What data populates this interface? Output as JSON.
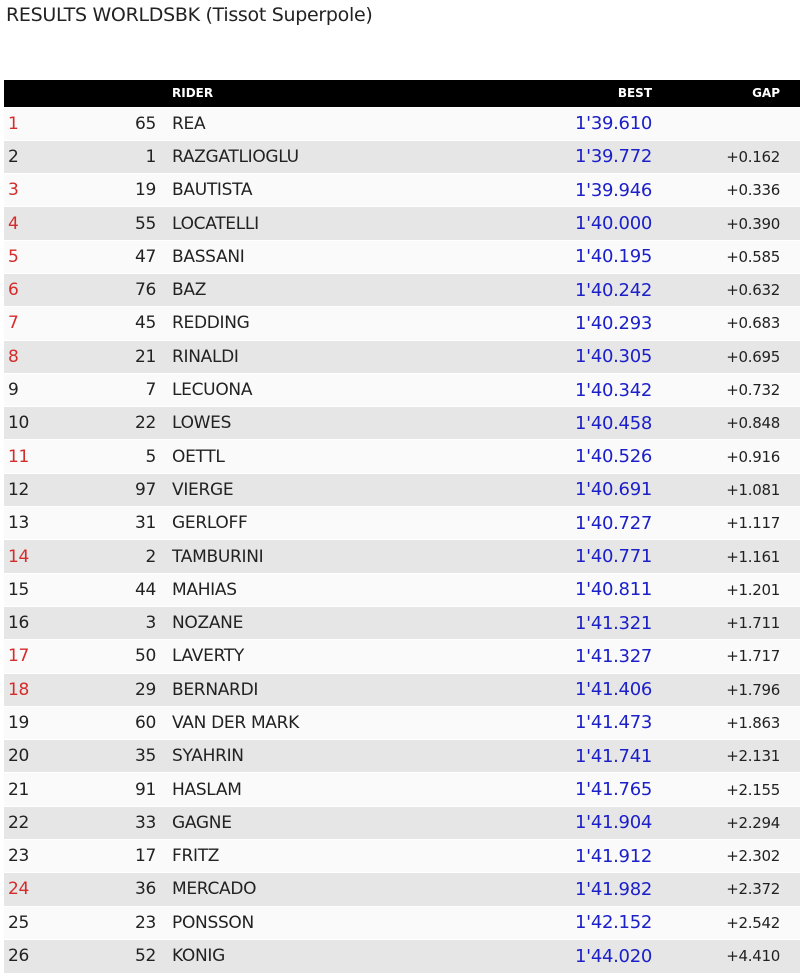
{
  "title": "RESULTS WORLDSBK (Tissot Superpole)",
  "colors": {
    "header_bg": "#000000",
    "best_time": "#1c20c8",
    "highlight_position": "#d42b2b"
  },
  "columns": {
    "pos": "",
    "number": "",
    "rider": "RIDER",
    "best": "BEST",
    "gap": "GAP"
  },
  "rows": [
    {
      "pos": "1",
      "num": "65",
      "rider": "REA",
      "best": "1'39.610",
      "gap": "",
      "red": true
    },
    {
      "pos": "2",
      "num": "1",
      "rider": "RAZGATLIOGLU",
      "best": "1'39.772",
      "gap": "+0.162",
      "red": false
    },
    {
      "pos": "3",
      "num": "19",
      "rider": "BAUTISTA",
      "best": "1'39.946",
      "gap": "+0.336",
      "red": true
    },
    {
      "pos": "4",
      "num": "55",
      "rider": "LOCATELLI",
      "best": "1'40.000",
      "gap": "+0.390",
      "red": true
    },
    {
      "pos": "5",
      "num": "47",
      "rider": "BASSANI",
      "best": "1'40.195",
      "gap": "+0.585",
      "red": true
    },
    {
      "pos": "6",
      "num": "76",
      "rider": "BAZ",
      "best": "1'40.242",
      "gap": "+0.632",
      "red": true
    },
    {
      "pos": "7",
      "num": "45",
      "rider": "REDDING",
      "best": "1'40.293",
      "gap": "+0.683",
      "red": true
    },
    {
      "pos": "8",
      "num": "21",
      "rider": "RINALDI",
      "best": "1'40.305",
      "gap": "+0.695",
      "red": true
    },
    {
      "pos": "9",
      "num": "7",
      "rider": "LECUONA",
      "best": "1'40.342",
      "gap": "+0.732",
      "red": false
    },
    {
      "pos": "10",
      "num": "22",
      "rider": "LOWES",
      "best": "1'40.458",
      "gap": "+0.848",
      "red": false
    },
    {
      "pos": "11",
      "num": "5",
      "rider": "OETTL",
      "best": "1'40.526",
      "gap": "+0.916",
      "red": true
    },
    {
      "pos": "12",
      "num": "97",
      "rider": "VIERGE",
      "best": "1'40.691",
      "gap": "+1.081",
      "red": false
    },
    {
      "pos": "13",
      "num": "31",
      "rider": "GERLOFF",
      "best": "1'40.727",
      "gap": "+1.117",
      "red": false
    },
    {
      "pos": "14",
      "num": "2",
      "rider": "TAMBURINI",
      "best": "1'40.771",
      "gap": "+1.161",
      "red": true
    },
    {
      "pos": "15",
      "num": "44",
      "rider": "MAHIAS",
      "best": "1'40.811",
      "gap": "+1.201",
      "red": false
    },
    {
      "pos": "16",
      "num": "3",
      "rider": "NOZANE",
      "best": "1'41.321",
      "gap": "+1.711",
      "red": false
    },
    {
      "pos": "17",
      "num": "50",
      "rider": "LAVERTY",
      "best": "1'41.327",
      "gap": "+1.717",
      "red": true
    },
    {
      "pos": "18",
      "num": "29",
      "rider": "BERNARDI",
      "best": "1'41.406",
      "gap": "+1.796",
      "red": true
    },
    {
      "pos": "19",
      "num": "60",
      "rider": "VAN DER MARK",
      "best": "1'41.473",
      "gap": "+1.863",
      "red": false
    },
    {
      "pos": "20",
      "num": "35",
      "rider": "SYAHRIN",
      "best": "1'41.741",
      "gap": "+2.131",
      "red": false
    },
    {
      "pos": "21",
      "num": "91",
      "rider": "HASLAM",
      "best": "1'41.765",
      "gap": "+2.155",
      "red": false
    },
    {
      "pos": "22",
      "num": "33",
      "rider": "GAGNE",
      "best": "1'41.904",
      "gap": "+2.294",
      "red": false
    },
    {
      "pos": "23",
      "num": "17",
      "rider": "FRITZ",
      "best": "1'41.912",
      "gap": "+2.302",
      "red": false
    },
    {
      "pos": "24",
      "num": "36",
      "rider": "MERCADO",
      "best": "1'41.982",
      "gap": "+2.372",
      "red": true
    },
    {
      "pos": "25",
      "num": "23",
      "rider": "PONSSON",
      "best": "1'42.152",
      "gap": "+2.542",
      "red": false
    },
    {
      "pos": "26",
      "num": "52",
      "rider": "KONIG",
      "best": "1'44.020",
      "gap": "+4.410",
      "red": false
    }
  ]
}
